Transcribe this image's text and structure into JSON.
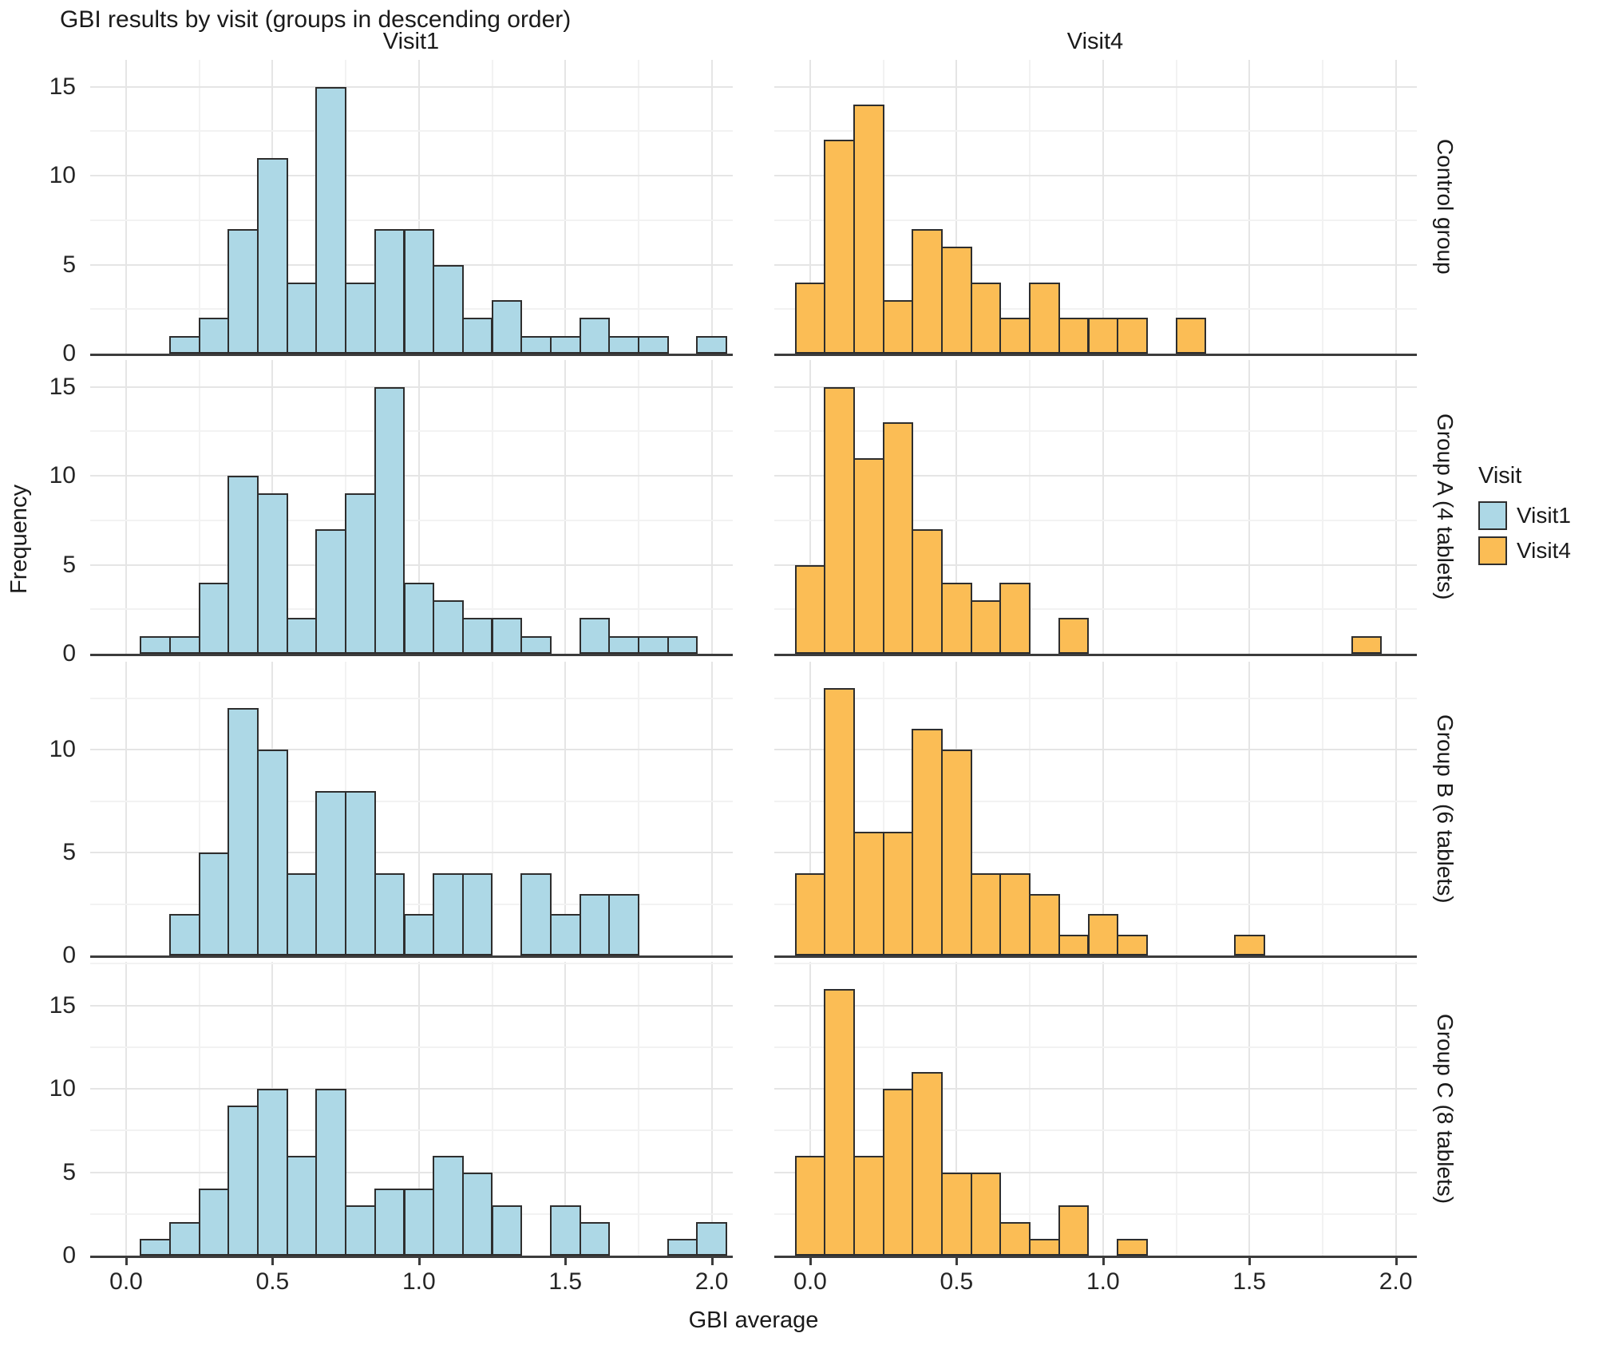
{
  "chart_data": {
    "type": "bar",
    "variant": "histogram-facet-grid",
    "title": "GBI results by visit (groups in descending order)",
    "xlabel": "GBI average",
    "ylabel": "Frequency",
    "columns": [
      "Visit1",
      "Visit4"
    ],
    "rows": [
      "Control group",
      "Group A (4 tablets)",
      "Group B (6 tablets)",
      "Group C (8 tablets)"
    ],
    "x_ticks": [
      0.0,
      0.5,
      1.0,
      1.5,
      2.0
    ],
    "row_y_ticks": [
      [
        0,
        5,
        10,
        15
      ],
      [
        0,
        5,
        10,
        15
      ],
      [
        0,
        5,
        10
      ],
      [
        0,
        5,
        10,
        15
      ]
    ],
    "xlim": [
      -0.12,
      2.07
    ],
    "bin_width": 0.1,
    "grid": "on",
    "legend_position": "right",
    "legend": {
      "title": "Visit",
      "entries": [
        {
          "label": "Visit1",
          "color": "#ADD8E6"
        },
        {
          "label": "Visit4",
          "color": "#FBBD55"
        }
      ]
    },
    "panels": [
      {
        "group": "Control group",
        "visit": "Visit1",
        "bin_start": 0.15,
        "counts": [
          1,
          2,
          7,
          11,
          4,
          15,
          4,
          7,
          7,
          5,
          2,
          3,
          1,
          1,
          2,
          1,
          1,
          0,
          1
        ]
      },
      {
        "group": "Control group",
        "visit": "Visit4",
        "bin_start": -0.05,
        "counts": [
          4,
          12,
          14,
          3,
          7,
          6,
          4,
          2,
          4,
          2,
          2,
          2,
          0,
          2
        ]
      },
      {
        "group": "Group A (4 tablets)",
        "visit": "Visit1",
        "bin_start": 0.05,
        "counts": [
          1,
          1,
          4,
          10,
          9,
          2,
          7,
          9,
          15,
          4,
          3,
          2,
          2,
          1,
          0,
          2,
          1,
          1,
          1
        ]
      },
      {
        "group": "Group A (4 tablets)",
        "visit": "Visit4",
        "bin_start": -0.05,
        "counts": [
          5,
          15,
          11,
          13,
          7,
          4,
          3,
          4,
          0,
          2,
          0,
          0,
          0,
          0,
          0,
          0,
          0,
          0,
          0,
          1
        ]
      },
      {
        "group": "Group B (6 tablets)",
        "visit": "Visit1",
        "bin_start": 0.15,
        "counts": [
          2,
          5,
          12,
          10,
          4,
          8,
          8,
          4,
          2,
          4,
          4,
          0,
          4,
          2,
          3,
          3
        ]
      },
      {
        "group": "Group B (6 tablets)",
        "visit": "Visit4",
        "bin_start": -0.05,
        "counts": [
          4,
          13,
          6,
          6,
          11,
          10,
          4,
          4,
          3,
          1,
          2,
          1,
          0,
          0,
          0,
          1
        ]
      },
      {
        "group": "Group C (8 tablets)",
        "visit": "Visit1",
        "bin_start": 0.05,
        "counts": [
          1,
          2,
          4,
          9,
          10,
          6,
          10,
          3,
          4,
          4,
          6,
          5,
          3,
          0,
          3,
          2,
          0,
          0,
          1,
          2
        ]
      },
      {
        "group": "Group C (8 tablets)",
        "visit": "Visit4",
        "bin_start": -0.05,
        "counts": [
          6,
          16,
          6,
          10,
          11,
          5,
          5,
          2,
          1,
          3,
          0,
          1
        ]
      }
    ]
  }
}
